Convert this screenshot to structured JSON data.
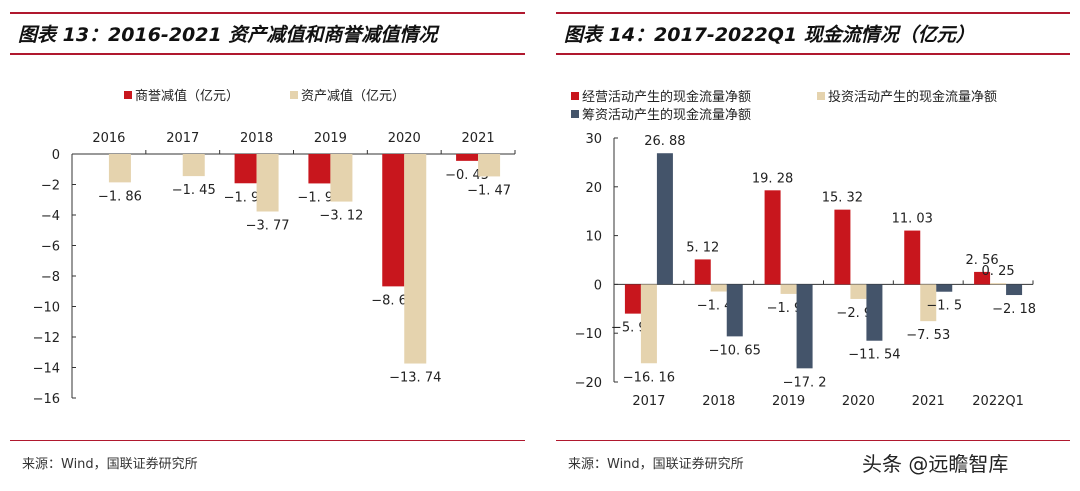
{
  "left": {
    "title": "图表 13：2016-2021 资产减值和商誉减值情况",
    "source": "来源：Wind，国联证券研究所"
  },
  "right": {
    "title": "图表 14：2017-2022Q1 现金流情况（亿元）",
    "source": "来源：Wind，国联证券研究所"
  },
  "watermark": "头条 @远瞻智库",
  "chart_data": [
    {
      "type": "bar",
      "categories": [
        "2016",
        "2017",
        "2018",
        "2019",
        "2020",
        "2021"
      ],
      "series": [
        {
          "name": "商誉减值（亿元）",
          "values": [
            null,
            null,
            -1.92,
            -1.93,
            -8.68,
            -0.45
          ],
          "color": "#c8161d"
        },
        {
          "name": "资产减值（亿元）",
          "values": [
            -1.86,
            -1.45,
            -3.77,
            -3.12,
            -13.74,
            -1.47
          ],
          "color": "#e5d3ae"
        }
      ],
      "ylim": [
        -16,
        0
      ],
      "yticks": [
        0,
        -2,
        -4,
        -6,
        -8,
        -10,
        -12,
        -14,
        -16
      ],
      "legend": "top",
      "xaxis": "top"
    },
    {
      "type": "bar",
      "categories": [
        "2017",
        "2018",
        "2019",
        "2020",
        "2021",
        "2022Q1"
      ],
      "series": [
        {
          "name": "经营活动产生的现金流量净额",
          "values": [
            -5.99,
            5.12,
            19.28,
            15.32,
            11.03,
            2.56
          ],
          "color": "#c8161d"
        },
        {
          "name": "投资活动产生的现金流量净额",
          "values": [
            -16.16,
            -1.46,
            -1.95,
            -2.98,
            -7.53,
            0.25
          ],
          "color": "#e5d3ae"
        },
        {
          "name": "筹资活动产生的现金流量净额",
          "values": [
            26.88,
            -10.65,
            -17.2,
            -11.54,
            -1.5,
            -2.18
          ],
          "color": "#44546a"
        }
      ],
      "ylim": [
        -20,
        30
      ],
      "yticks": [
        30,
        20,
        10,
        0,
        -10,
        -20
      ],
      "legend": "top-left",
      "xaxis": "bottom"
    }
  ]
}
